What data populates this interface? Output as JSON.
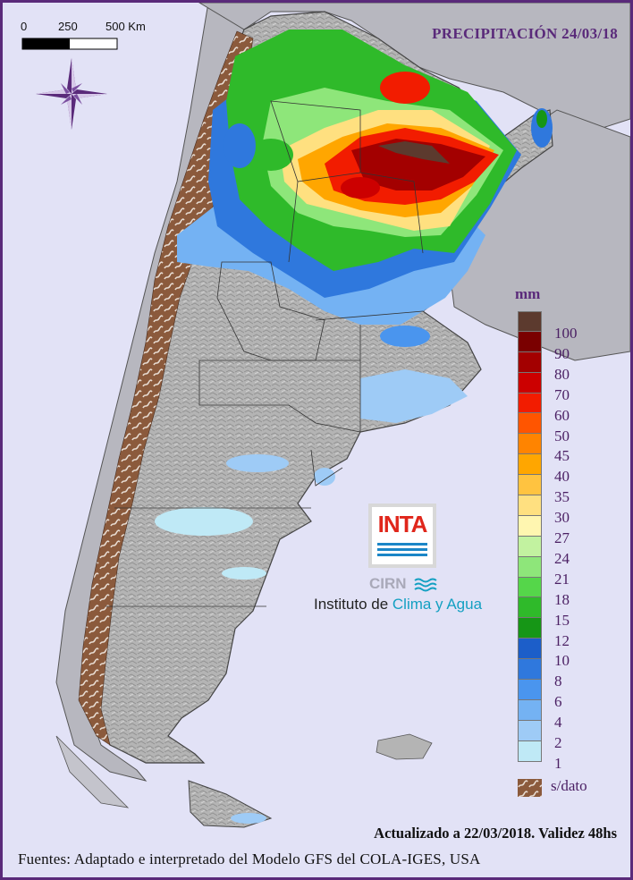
{
  "title": "PRECIPITACIÓN 24/03/18",
  "scale_bar": {
    "labels": [
      "0",
      "250",
      "500 Km"
    ]
  },
  "legend": {
    "unit": "mm",
    "classes": [
      {
        "label": "100",
        "color": "#5c3a2e"
      },
      {
        "label": "90",
        "color": "#7a0000"
      },
      {
        "label": "80",
        "color": "#a30000"
      },
      {
        "label": "70",
        "color": "#cc0000"
      },
      {
        "label": "60",
        "color": "#f21c00"
      },
      {
        "label": "50",
        "color": "#ff5500"
      },
      {
        "label": "45",
        "color": "#ff8400"
      },
      {
        "label": "40",
        "color": "#ffa600"
      },
      {
        "label": "35",
        "color": "#ffc340"
      },
      {
        "label": "30",
        "color": "#ffe080"
      },
      {
        "label": "27",
        "color": "#fff6b0"
      },
      {
        "label": "24",
        "color": "#c2f2a0"
      },
      {
        "label": "21",
        "color": "#8ee67a"
      },
      {
        "label": "18",
        "color": "#55d64a"
      },
      {
        "label": "15",
        "color": "#2fba2a"
      },
      {
        "label": "12",
        "color": "#169616"
      },
      {
        "label": "10",
        "color": "#1c5ec9"
      },
      {
        "label": "8",
        "color": "#2f78dd"
      },
      {
        "label": "6",
        "color": "#4a95ee"
      },
      {
        "label": "4",
        "color": "#74b2f3"
      },
      {
        "label": "2",
        "color": "#9ecbf6"
      },
      {
        "label": "1",
        "color": "#bfe9f6"
      }
    ],
    "no_data_label": "s/dato",
    "no_data_color": "#8b5a3c"
  },
  "colors": {
    "frame": "#5a2a7a",
    "ocean": "#e2e2f6",
    "neighbor_land": "#b7b7bf",
    "argentina_base": "#b5b5b5",
    "compass": "#5a2a7a"
  },
  "logo": {
    "brand": "INTA",
    "sub": "CIRN",
    "institute_prefix": "Instituto de ",
    "institute_accent": "Clima y Agua"
  },
  "footer": {
    "updated": "Actualizado a 22/03/2018. Validez 48hs",
    "sources": "Fuentes: Adaptado e interpretado del Modelo GFS del COLA-IGES, USA"
  },
  "icons": [
    "compass-rose-icon",
    "water-waves-icon"
  ]
}
